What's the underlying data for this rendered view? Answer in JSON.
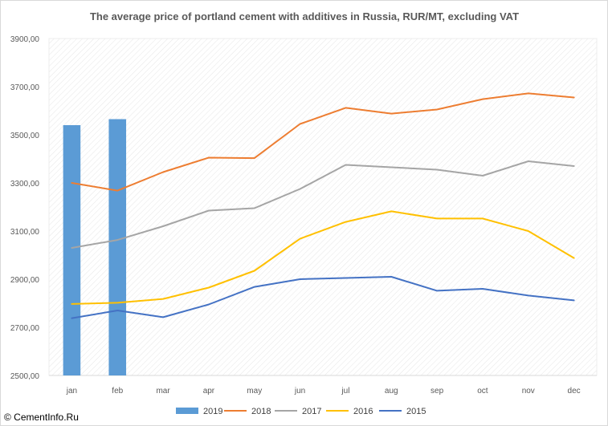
{
  "footer": {
    "copyright": "© CementInfo.Ru"
  },
  "chart_data": {
    "type": "bar",
    "title": "The average price of portland cement with additives in Russia, RUR/MT,  excluding VAT",
    "categories": [
      "jan",
      "feb",
      "mar",
      "apr",
      "may",
      "jun",
      "jul",
      "aug",
      "sep",
      "oct",
      "nov",
      "dec"
    ],
    "y_ticks": [
      "2500,00",
      "2700,00",
      "2900,00",
      "3100,00",
      "3300,00",
      "3500,00",
      "3700,00",
      "3900,00"
    ],
    "ylim": [
      2500,
      3900
    ],
    "grid": "hatched plot area",
    "legend_position": "bottom",
    "series": [
      {
        "name": "2019",
        "type": "bar",
        "color": "#5b9bd5",
        "values": [
          3540,
          3565,
          null,
          null,
          null,
          null,
          null,
          null,
          null,
          null,
          null,
          null
        ]
      },
      {
        "name": "2018",
        "type": "line",
        "color": "#ed7d31",
        "values": [
          3300,
          3268,
          3345,
          3405,
          3403,
          3545,
          3612,
          3588,
          3605,
          3648,
          3672,
          3655
        ]
      },
      {
        "name": "2017",
        "type": "line",
        "color": "#a5a5a5",
        "values": [
          3030,
          3063,
          3120,
          3185,
          3195,
          3275,
          3375,
          3365,
          3355,
          3330,
          3390,
          3370
        ]
      },
      {
        "name": "2016",
        "type": "line",
        "color": "#ffc000",
        "values": [
          2797,
          2802,
          2818,
          2865,
          2935,
          3068,
          3138,
          3182,
          3152,
          3152,
          3100,
          2988
        ]
      },
      {
        "name": "2015",
        "type": "line",
        "color": "#4472c4",
        "values": [
          2738,
          2770,
          2742,
          2795,
          2868,
          2900,
          2905,
          2910,
          2852,
          2860,
          2832,
          2812
        ]
      }
    ]
  }
}
